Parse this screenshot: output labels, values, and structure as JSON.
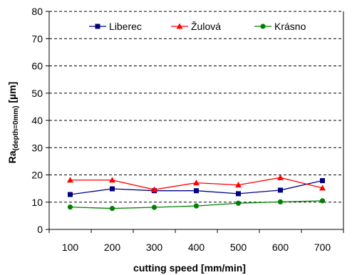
{
  "chart_data": {
    "type": "line",
    "x": [
      100,
      200,
      300,
      400,
      500,
      600,
      700
    ],
    "series": [
      {
        "name": "Liberec",
        "color": "#000080",
        "marker": "square",
        "values": [
          12.8,
          14.9,
          14.2,
          14.2,
          13.1,
          14.4,
          17.9
        ]
      },
      {
        "name": "Žulová",
        "color": "#ff0000",
        "marker": "triangle",
        "values": [
          18.1,
          18.1,
          14.6,
          17.1,
          16.3,
          19.0,
          15.2
        ]
      },
      {
        "name": "Krásno",
        "color": "#008000",
        "marker": "circle",
        "values": [
          8.2,
          7.7,
          8.1,
          8.6,
          9.6,
          10.1,
          10.5
        ]
      }
    ],
    "xlabel": "cutting speed [mm/min]",
    "ylabel_main": "Ra",
    "ylabel_sub": "(depth=0mm)",
    "ylabel_unit": " [µm]",
    "ylim": [
      0,
      80
    ],
    "yticks": [
      0,
      10,
      20,
      30,
      40,
      50,
      60,
      70,
      80
    ],
    "grid": "horizontal dashed",
    "legend_position": "top"
  }
}
